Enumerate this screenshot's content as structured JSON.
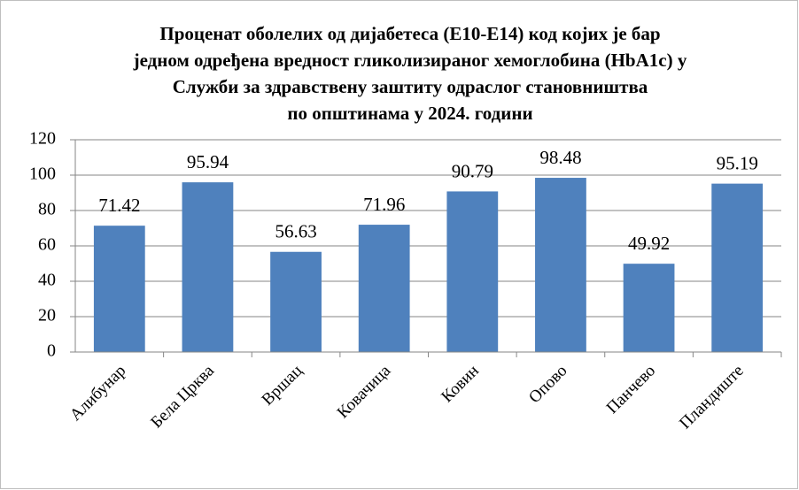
{
  "chart_data": {
    "type": "bar",
    "title": [
      "Проценат оболелих од дијабетеса (Е10-Е14) код којих је бар",
      "једном одређена вредност гликолизираног  хемоглобина  (HbA1c) у",
      "Служби за здравствену  заштиту одраслог становништва",
      "по општинама  у  2024. години"
    ],
    "categories": [
      "Алибунар",
      "Бела Црква",
      "Вршац",
      "Ковачица",
      "Ковин",
      "Опово",
      "Панчево",
      "Пландиште"
    ],
    "values": [
      71.42,
      95.94,
      56.63,
      71.96,
      90.79,
      98.48,
      49.92,
      95.19
    ],
    "color": "#4f81bd",
    "ylim": [
      0,
      120
    ],
    "yticks": [
      0,
      20,
      40,
      60,
      80,
      100,
      120
    ],
    "grid": true
  }
}
